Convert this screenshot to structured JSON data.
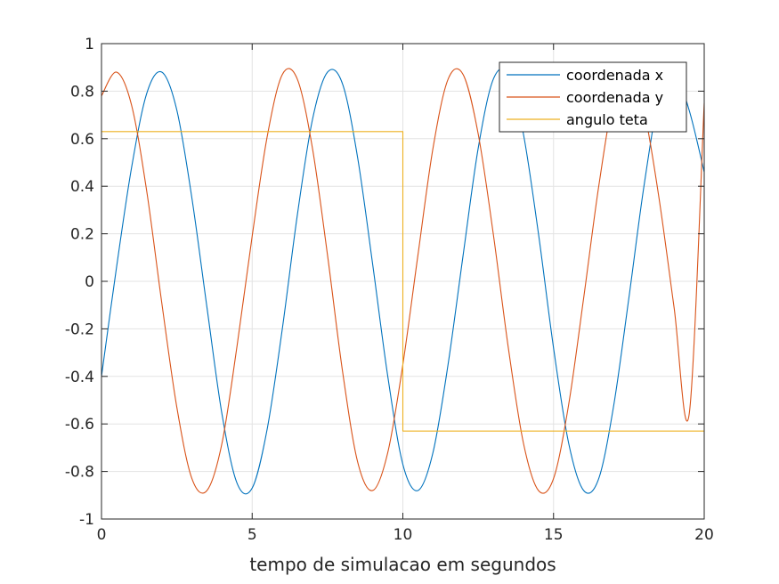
{
  "chart_data": {
    "type": "line",
    "title": "",
    "xlabel": "tempo de simulacao em segundos",
    "ylabel": "",
    "xlim": [
      0,
      20
    ],
    "ylim": [
      -1,
      1
    ],
    "x_ticks": [
      0,
      5,
      10,
      15,
      20
    ],
    "y_ticks": [
      -1,
      -0.8,
      -0.6,
      -0.4,
      -0.2,
      0,
      0.2,
      0.4,
      0.6,
      0.8,
      1
    ],
    "x_tick_labels": [
      "0",
      "5",
      "10",
      "15",
      "20"
    ],
    "y_tick_labels": [
      "-1",
      "-0.8",
      "-0.6",
      "-0.4",
      "-0.2",
      "0",
      "0.2",
      "0.4",
      "0.6",
      "0.8",
      "1"
    ],
    "grid": true,
    "legend_position": "top-right",
    "series": [
      {
        "name": "coordenada x",
        "color": "#0072BD",
        "x": [
          0,
          0.5,
          1,
          1.5,
          2,
          2.5,
          3,
          3.5,
          4,
          4.5,
          5,
          5.5,
          6,
          6.5,
          7,
          7.5,
          8,
          8.5,
          9,
          9.5,
          10,
          10.5,
          11,
          11.5,
          12,
          12.5,
          13,
          13.5,
          14,
          14.5,
          15,
          15.5,
          16,
          16.5,
          17,
          17.5,
          18,
          18.5,
          19,
          19.5,
          20
        ],
        "y": [
          -0.4,
          0.06,
          0.48,
          0.79,
          0.88,
          0.72,
          0.35,
          -0.11,
          -0.56,
          -0.85,
          -0.87,
          -0.62,
          -0.2,
          0.28,
          0.68,
          0.88,
          0.83,
          0.52,
          0.07,
          -0.4,
          -0.77,
          -0.88,
          -0.72,
          -0.35,
          0.11,
          0.56,
          0.85,
          0.87,
          0.62,
          0.2,
          -0.28,
          -0.68,
          -0.88,
          -0.83,
          -0.52,
          -0.07,
          0.4,
          0.77,
          0.88,
          0.72,
          0.46
        ]
      },
      {
        "name": "coordenada y",
        "color": "#D95319",
        "x": [
          0,
          0.5,
          1,
          1.5,
          2,
          2.5,
          3,
          3.5,
          4,
          4.5,
          5,
          5.5,
          6,
          6.5,
          7,
          7.5,
          8,
          8.5,
          9,
          9.5,
          10,
          10.5,
          11,
          11.5,
          12,
          12.5,
          13,
          13.5,
          14,
          14.5,
          15,
          15.5,
          16,
          16.5,
          17,
          17.5,
          18,
          18.5,
          19,
          19.5,
          20
        ],
        "y": [
          0.78,
          0.88,
          0.74,
          0.38,
          -0.09,
          -0.53,
          -0.83,
          -0.88,
          -0.68,
          -0.27,
          0.19,
          0.61,
          0.87,
          0.85,
          0.56,
          0.11,
          -0.38,
          -0.76,
          -0.88,
          -0.72,
          -0.35,
          0.11,
          0.56,
          0.85,
          0.87,
          0.62,
          0.2,
          -0.28,
          -0.68,
          -0.88,
          -0.83,
          -0.52,
          -0.07,
          0.4,
          0.77,
          0.88,
          0.72,
          0.35,
          -0.11,
          -0.56,
          0.75
        ]
      },
      {
        "name": "angulo teta",
        "color": "#EDB120",
        "x": [
          0,
          10,
          10,
          20
        ],
        "y": [
          0.63,
          0.63,
          -0.63,
          -0.63
        ]
      }
    ]
  }
}
